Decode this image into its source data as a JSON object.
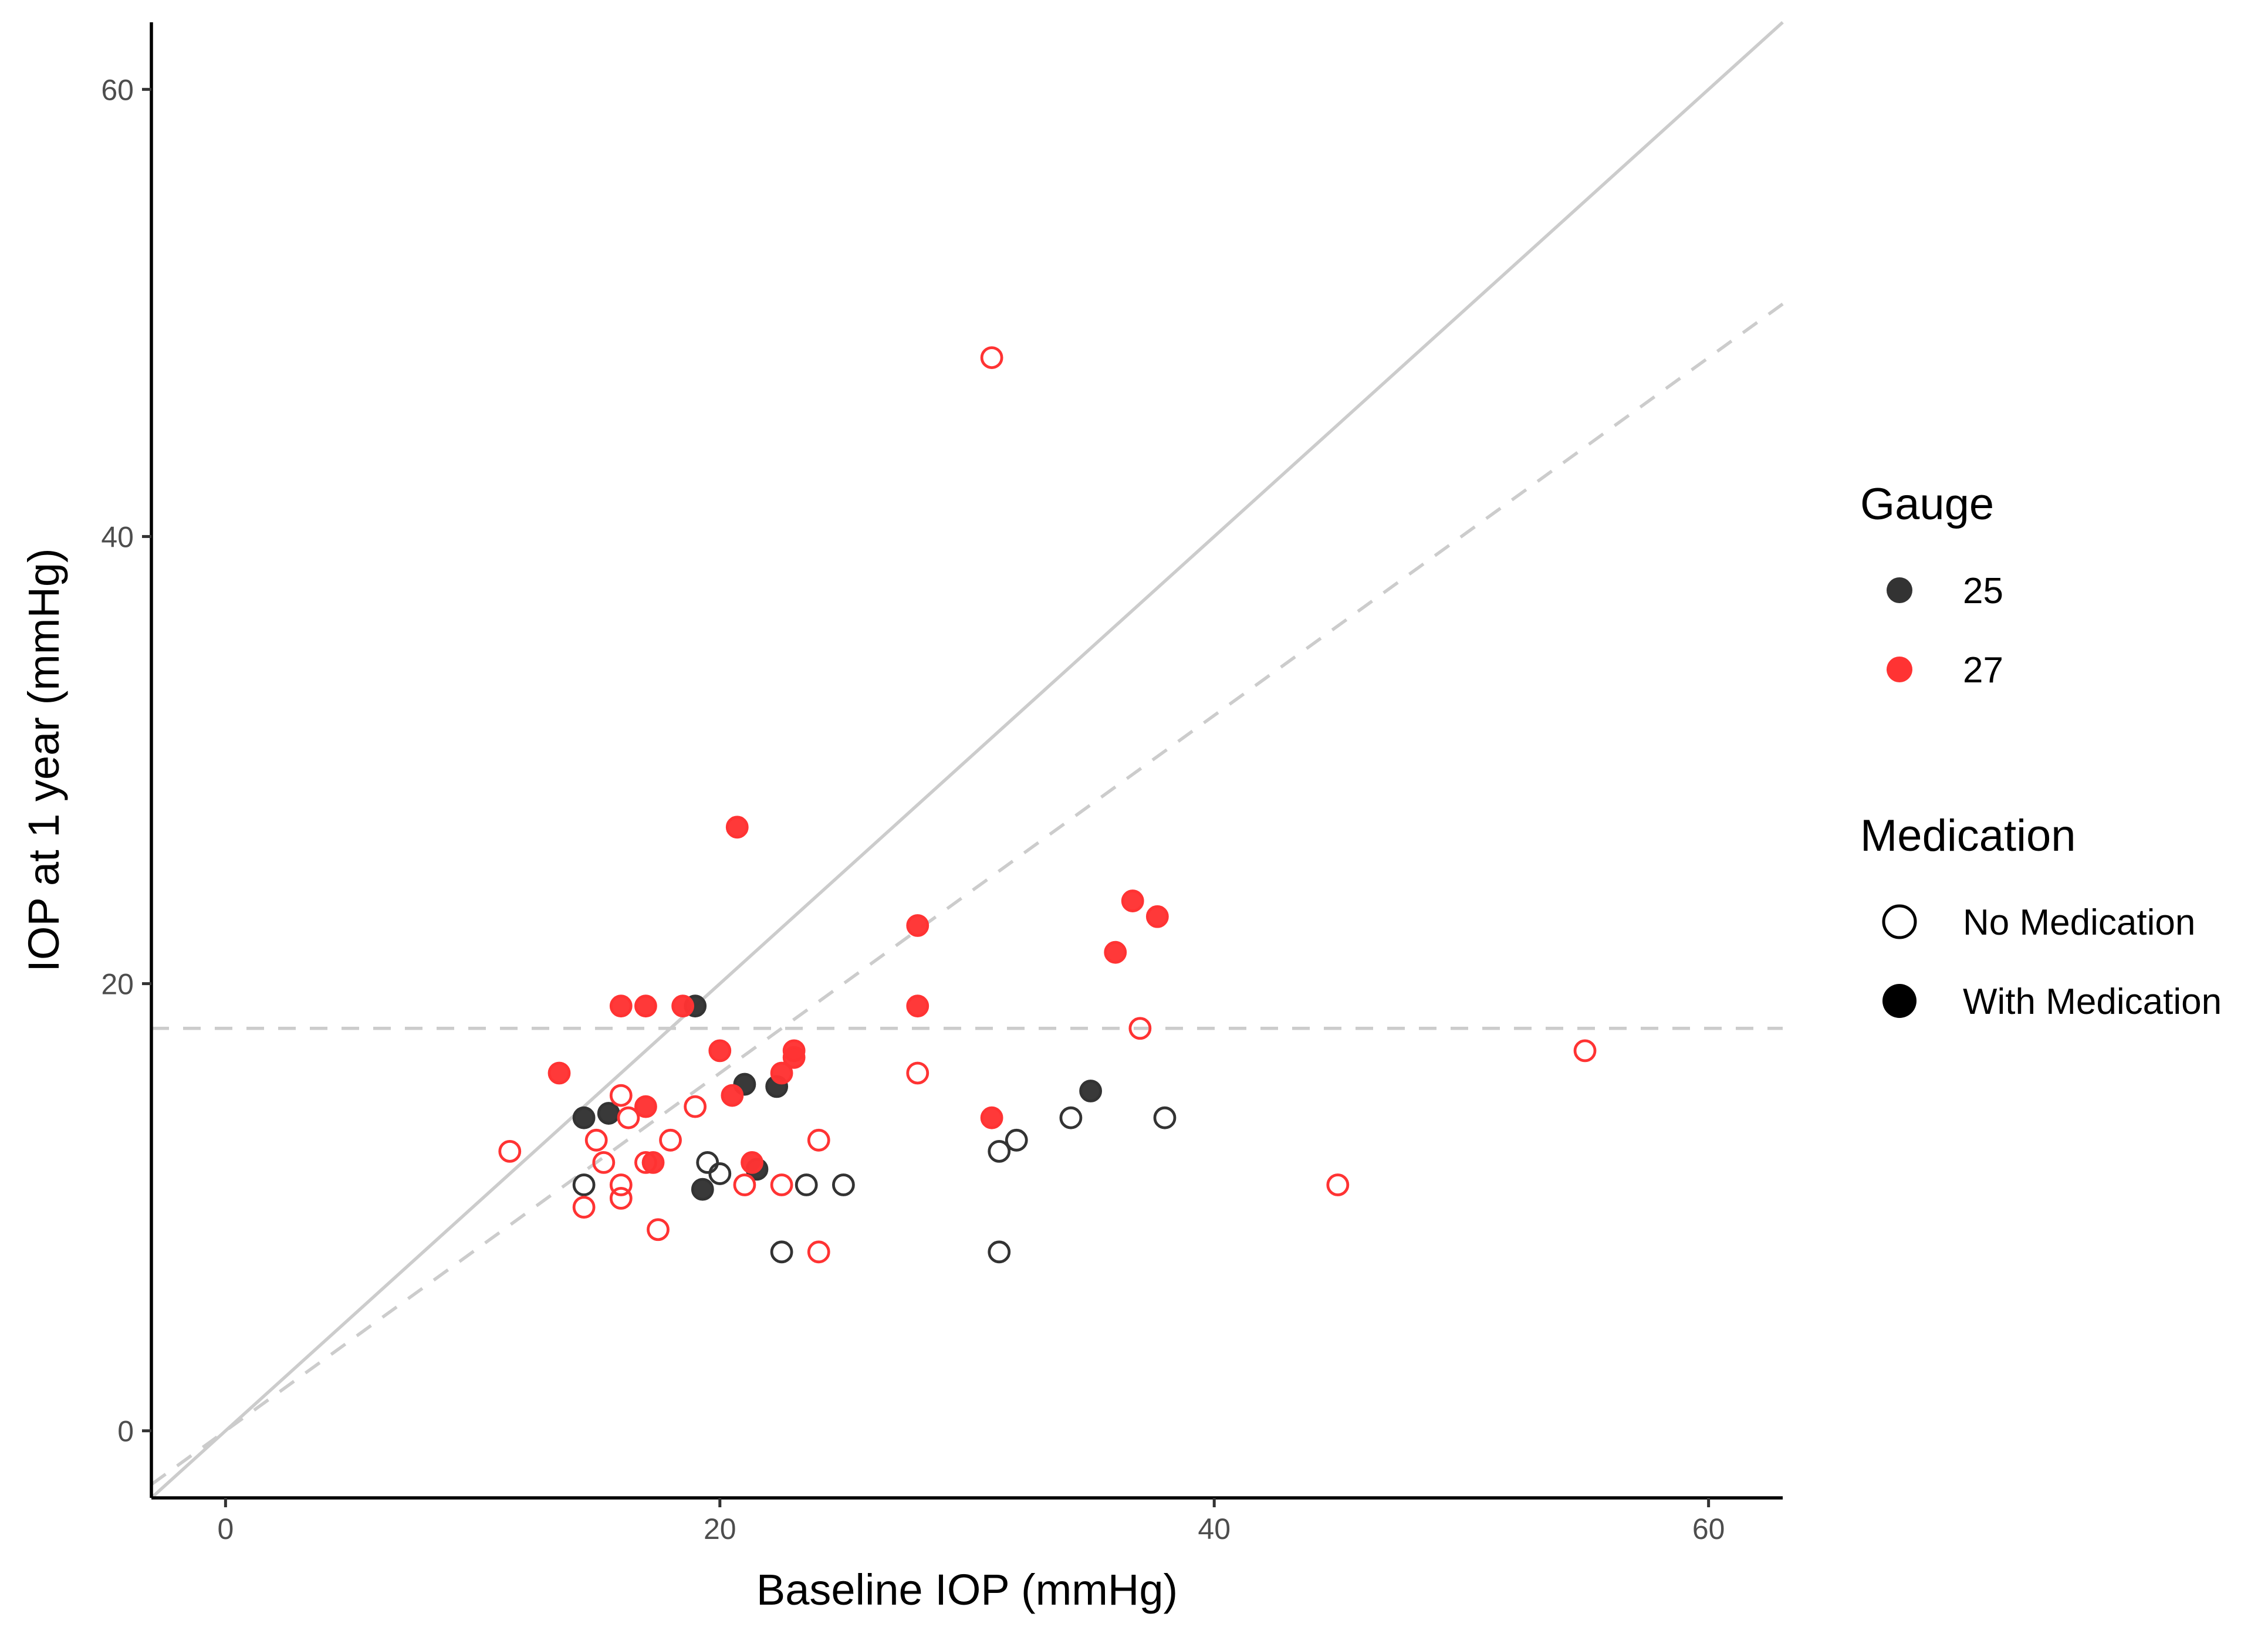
{
  "chart_data": {
    "type": "scatter",
    "xlabel": "Baseline IOP (mmHg)",
    "ylabel": "IOP at 1 year (mmHg)",
    "xlim": [
      -3,
      63
    ],
    "ylim": [
      -3,
      63
    ],
    "x_ticks": [
      0,
      20,
      40,
      60
    ],
    "y_ticks": [
      0,
      20,
      40,
      60
    ],
    "grid": false,
    "reference_lines": [
      {
        "name": "identity",
        "style": "solid",
        "color": "#cccccc",
        "slope": 1,
        "intercept": 0
      },
      {
        "name": "regression",
        "style": "dashed",
        "color": "#cccccc",
        "slope": 0.8,
        "intercept": 0
      },
      {
        "name": "threshold",
        "style": "dashed",
        "color": "#cccccc",
        "y": 18
      }
    ],
    "colors": {
      "25": "#333333",
      "27": "#ff3333"
    },
    "legend": {
      "position": "right",
      "gauge": {
        "title": "Gauge",
        "entries": [
          {
            "label": "25",
            "color": "#333333"
          },
          {
            "label": "27",
            "color": "#ff3333"
          }
        ]
      },
      "medication": {
        "title": "Medication",
        "entries": [
          {
            "label": "No Medication",
            "filled": false
          },
          {
            "label": "With Medication",
            "filled": true
          }
        ]
      }
    },
    "series": [
      {
        "name": "Gauge 25 - No Medication",
        "gauge": "25",
        "filled": false,
        "points": [
          [
            14.5,
            11
          ],
          [
            19.5,
            12
          ],
          [
            20,
            11.5
          ],
          [
            22.5,
            8
          ],
          [
            23.5,
            11
          ],
          [
            25,
            11
          ],
          [
            31.3,
            8
          ],
          [
            31.3,
            12.5
          ],
          [
            32,
            13
          ],
          [
            34.2,
            14
          ],
          [
            38,
            14
          ]
        ]
      },
      {
        "name": "Gauge 25 - With Medication",
        "gauge": "25",
        "filled": true,
        "points": [
          [
            14.5,
            14
          ],
          [
            15.5,
            14.2
          ],
          [
            19,
            19
          ],
          [
            19.3,
            10.8
          ],
          [
            21,
            15.5
          ],
          [
            21.5,
            11.7
          ],
          [
            22.3,
            15.4
          ],
          [
            35,
            15.2
          ]
        ]
      },
      {
        "name": "Gauge 27 - No Medication",
        "gauge": "27",
        "filled": false,
        "points": [
          [
            11.5,
            12.5
          ],
          [
            14.5,
            10
          ],
          [
            15,
            13
          ],
          [
            15.3,
            12
          ],
          [
            16,
            15
          ],
          [
            16,
            11
          ],
          [
            16,
            10.4
          ],
          [
            16.3,
            14
          ],
          [
            17,
            12
          ],
          [
            17.5,
            9
          ],
          [
            18,
            13
          ],
          [
            19,
            14.5
          ],
          [
            21,
            11
          ],
          [
            22.5,
            11
          ],
          [
            24,
            13
          ],
          [
            24,
            8
          ],
          [
            28,
            16
          ],
          [
            31,
            48
          ],
          [
            37,
            18
          ],
          [
            45,
            11
          ],
          [
            55,
            17
          ]
        ]
      },
      {
        "name": "Gauge 27 - With Medication",
        "gauge": "27",
        "filled": true,
        "points": [
          [
            13.5,
            16
          ],
          [
            16,
            19
          ],
          [
            17,
            19
          ],
          [
            17,
            14.5
          ],
          [
            17.3,
            12
          ],
          [
            18.5,
            19
          ],
          [
            20,
            17
          ],
          [
            20.5,
            15
          ],
          [
            20.7,
            27
          ],
          [
            21.3,
            12
          ],
          [
            22.5,
            16
          ],
          [
            23,
            17
          ],
          [
            23,
            16.7
          ],
          [
            28,
            22.6
          ],
          [
            28,
            19
          ],
          [
            31,
            14
          ],
          [
            36,
            21.4
          ],
          [
            36.7,
            23.7
          ],
          [
            37.7,
            23
          ]
        ]
      }
    ]
  }
}
